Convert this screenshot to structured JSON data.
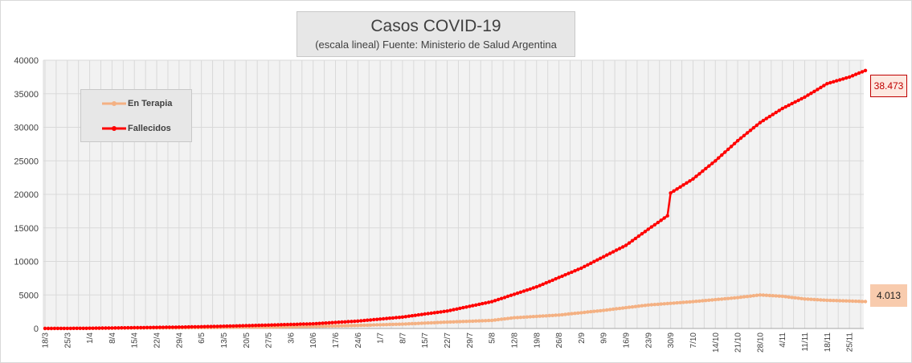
{
  "chart_data": {
    "type": "line",
    "title": "Casos COVID-19",
    "subtitle": "(escala lineal) Fuente: Ministerio de Salud Argentina",
    "xlabel": "",
    "ylabel": "",
    "ylim": [
      0,
      40000
    ],
    "yticks": [
      "0",
      "5000",
      "10000",
      "15000",
      "20000",
      "25000",
      "30000",
      "35000",
      "40000"
    ],
    "x_start": "18/3",
    "x_end": "30/11",
    "x_tick_labels": [
      "18/3",
      "25/3",
      "1/4",
      "8/4",
      "15/4",
      "22/4",
      "29/4",
      "6/5",
      "13/5",
      "20/5",
      "27/5",
      "3/6",
      "10/6",
      "17/6",
      "24/6",
      "1/7",
      "8/7",
      "15/7",
      "22/7",
      "29/7",
      "5/8",
      "12/8",
      "19/8",
      "26/8",
      "2/9",
      "9/9",
      "16/9",
      "23/9",
      "30/9",
      "7/10",
      "14/10",
      "21/10",
      "28/10",
      "4/11",
      "11/11",
      "18/11",
      "25/11"
    ],
    "legend_position": "top-left",
    "grid": true,
    "series": [
      {
        "name": "En Terapia",
        "color": "#f4b183",
        "anchors": [
          [
            "18/3",
            0
          ],
          [
            "1/4",
            30
          ],
          [
            "15/4",
            70
          ],
          [
            "29/4",
            100
          ],
          [
            "13/5",
            150
          ],
          [
            "27/5",
            200
          ],
          [
            "10/6",
            300
          ],
          [
            "24/6",
            450
          ],
          [
            "8/7",
            650
          ],
          [
            "22/7",
            950
          ],
          [
            "5/8",
            1200
          ],
          [
            "12/8",
            1600
          ],
          [
            "26/8",
            2000
          ],
          [
            "9/9",
            2700
          ],
          [
            "23/9",
            3500
          ],
          [
            "7/10",
            4000
          ],
          [
            "21/10",
            4600
          ],
          [
            "28/10",
            5000
          ],
          [
            "4/11",
            4800
          ],
          [
            "11/11",
            4400
          ],
          [
            "18/11",
            4200
          ],
          [
            "30/11",
            4013
          ]
        ],
        "end_label": "4.013"
      },
      {
        "name": "Fallecidos",
        "color": "#ff0000",
        "anchors": [
          [
            "18/3",
            0
          ],
          [
            "1/4",
            30
          ],
          [
            "15/4",
            120
          ],
          [
            "29/4",
            200
          ],
          [
            "13/5",
            330
          ],
          [
            "27/5",
            500
          ],
          [
            "10/6",
            700
          ],
          [
            "24/6",
            1100
          ],
          [
            "8/7",
            1700
          ],
          [
            "22/7",
            2600
          ],
          [
            "5/8",
            4000
          ],
          [
            "19/8",
            6200
          ],
          [
            "2/9",
            9000
          ],
          [
            "16/9",
            12400
          ],
          [
            "23/9",
            14800
          ],
          [
            "29/9",
            16800
          ],
          [
            "30/9",
            20200
          ],
          [
            "7/10",
            22300
          ],
          [
            "14/10",
            25000
          ],
          [
            "21/10",
            28000
          ],
          [
            "28/10",
            30700
          ],
          [
            "4/11",
            32800
          ],
          [
            "11/11",
            34500
          ],
          [
            "18/11",
            36500
          ],
          [
            "25/11",
            37500
          ],
          [
            "30/11",
            38473
          ]
        ],
        "end_label": "38.473"
      }
    ]
  }
}
